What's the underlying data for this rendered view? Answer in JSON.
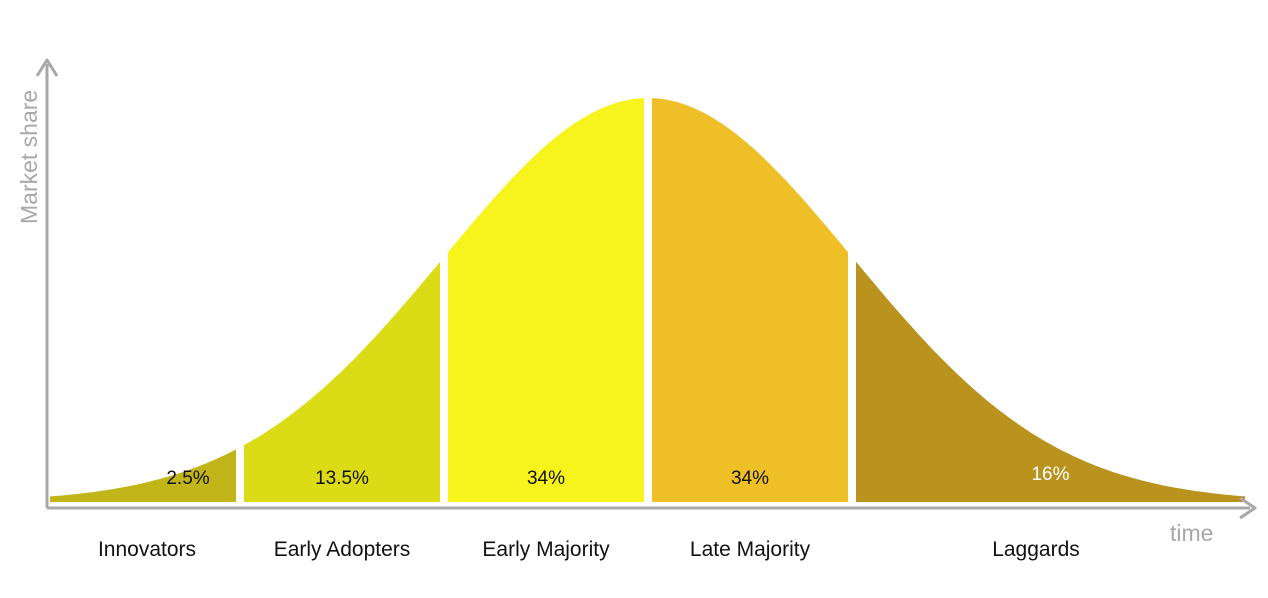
{
  "chart_data": {
    "type": "area",
    "ylabel": "Market share",
    "xlabel": "time",
    "grid": false,
    "segments": [
      {
        "name": "Innovators",
        "share": "2.5%",
        "value": 2.5,
        "color": "#c2b51a",
        "label_color": "#111111"
      },
      {
        "name": "Early Adopters",
        "share": "13.5%",
        "value": 13.5,
        "color": "#dcdc16",
        "label_color": "#111111"
      },
      {
        "name": "Early Majority",
        "share": "34%",
        "value": 34,
        "color": "#f7f41d",
        "label_color": "#111111"
      },
      {
        "name": "Late Majority",
        "share": "34%",
        "value": 34,
        "color": "#efbf27",
        "label_color": "#111111"
      },
      {
        "name": "Laggards",
        "share": "16%",
        "value": 16,
        "color": "#ba931f",
        "label_color": "#ffffff"
      }
    ],
    "axis_color": "#a8a8a8"
  }
}
